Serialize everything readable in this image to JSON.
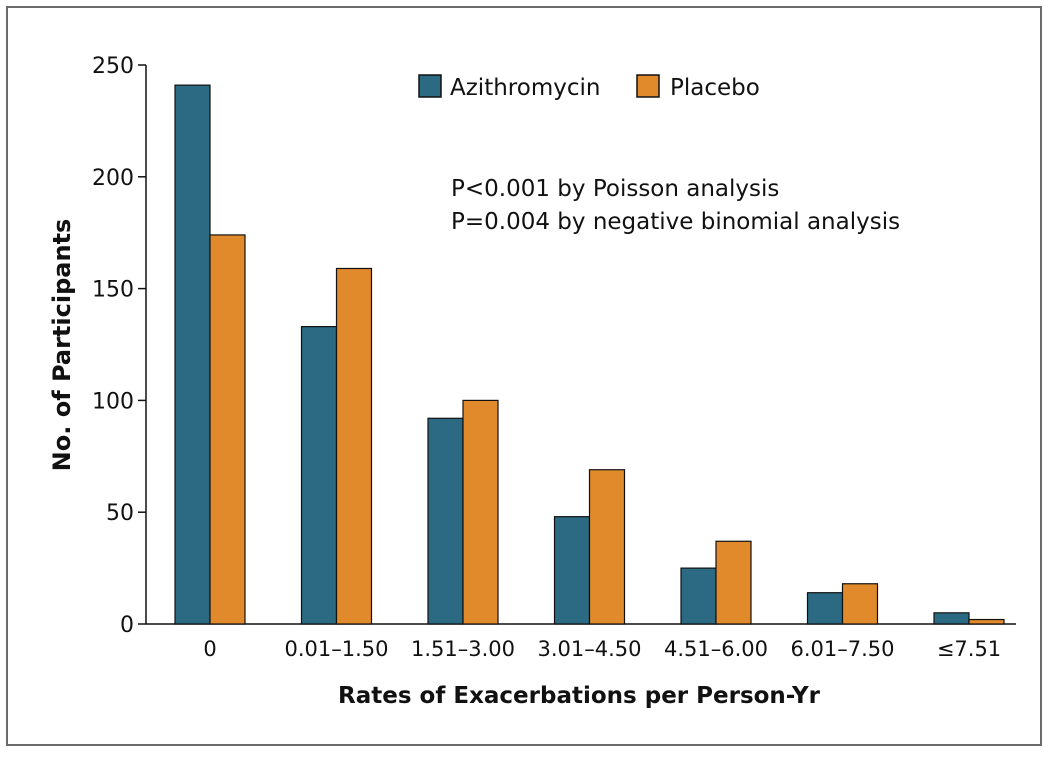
{
  "chart_data": {
    "type": "bar",
    "title": "",
    "xlabel": "Rates of Exacerbations per Person-Yr",
    "ylabel": "No. of Participants",
    "ylim": [
      0,
      250
    ],
    "yticks": [
      0,
      50,
      100,
      150,
      200,
      250
    ],
    "categories": [
      "0",
      "0.01–1.50",
      "1.51–3.00",
      "3.01–4.50",
      "4.51–6.00",
      "6.01–7.50",
      "≤7.51"
    ],
    "series": [
      {
        "name": "Azithromycin",
        "color": "#2b6a82",
        "values": [
          241,
          133,
          92,
          48,
          25,
          14,
          5
        ]
      },
      {
        "name": "Placebo",
        "color": "#e08a2c",
        "values": [
          174,
          159,
          100,
          69,
          37,
          18,
          2
        ]
      }
    ],
    "legend_position": "top-center",
    "annotations": [
      "P<0.001 by Poisson analysis",
      "P=0.004 by negative binomial analysis"
    ],
    "grid": false
  }
}
